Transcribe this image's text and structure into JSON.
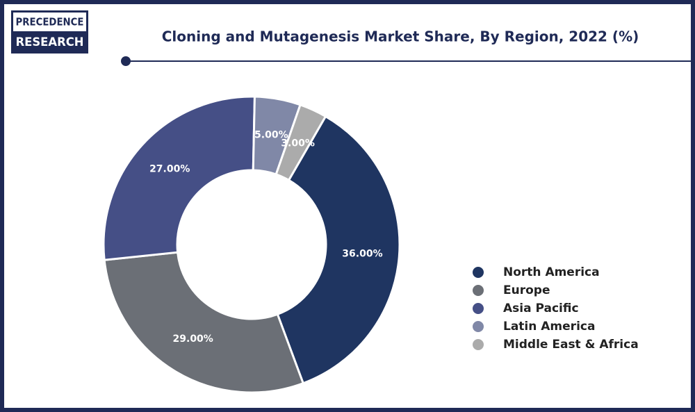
{
  "brand": {
    "line1": "PRECEDENCE",
    "line2": "RESEARCH"
  },
  "chart_data": {
    "type": "donut",
    "title": "Cloning and Mutagenesis Market Share, By Region, 2022 (%)",
    "categories": [
      "North America",
      "Europe",
      "Asia Pacific",
      "Latin America",
      "Middle East & Africa"
    ],
    "values": [
      36,
      29,
      27,
      5,
      3
    ],
    "value_labels": [
      "36.00%",
      "29.00%",
      "27.00%",
      "5.00%",
      "3.00%"
    ],
    "colors": [
      "#1f3561",
      "#6b6f76",
      "#454f86",
      "#8088a7",
      "#ababab"
    ],
    "legend": "right"
  }
}
